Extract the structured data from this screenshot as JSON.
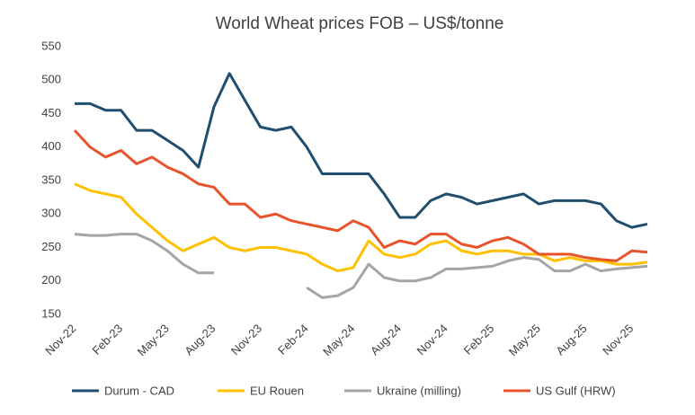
{
  "chart_data": {
    "type": "line",
    "title": "World Wheat prices FOB – US$/tonne",
    "categories": [
      "Nov-22",
      null,
      null,
      "Feb-23",
      null,
      null,
      "May-23",
      null,
      null,
      "Aug-23",
      null,
      null,
      "Nov-23",
      null,
      null,
      "Feb-24",
      null,
      null,
      "May-24",
      null,
      null,
      "Aug-24",
      null,
      null,
      "Nov-24",
      null,
      null,
      "Feb-25",
      null,
      null,
      "May-25",
      null,
      null,
      "Aug-25",
      null,
      null,
      "Nov-25",
      null
    ],
    "series": [
      {
        "name": "Durum - CAD",
        "color": "#1f4e6e",
        "values": [
          465,
          465,
          455,
          455,
          425,
          425,
          410,
          395,
          370,
          460,
          510,
          470,
          430,
          425,
          430,
          400,
          360,
          360,
          360,
          360,
          330,
          295,
          295,
          320,
          330,
          325,
          315,
          320,
          325,
          330,
          315,
          320,
          320,
          320,
          315,
          290,
          280,
          285
        ]
      },
      {
        "name": "EU Rouen",
        "color": "#ffc000",
        "values": [
          345,
          335,
          330,
          325,
          300,
          280,
          260,
          245,
          255,
          265,
          250,
          245,
          250,
          250,
          245,
          240,
          225,
          215,
          220,
          260,
          240,
          235,
          240,
          255,
          260,
          245,
          240,
          245,
          245,
          240,
          240,
          230,
          235,
          230,
          230,
          225,
          225,
          228
        ]
      },
      {
        "name": "Ukraine (milling)",
        "color": "#a5a5a5",
        "values": [
          270,
          268,
          268,
          270,
          270,
          260,
          245,
          225,
          212,
          212,
          null,
          null,
          null,
          null,
          null,
          190,
          175,
          178,
          190,
          225,
          205,
          200,
          200,
          205,
          218,
          218,
          220,
          222,
          230,
          235,
          232,
          215,
          215,
          225,
          215,
          218,
          220,
          222
        ]
      },
      {
        "name": "US Gulf (HRW)",
        "color": "#e8532c",
        "values": [
          425,
          400,
          385,
          395,
          375,
          385,
          370,
          360,
          345,
          340,
          315,
          315,
          295,
          300,
          290,
          285,
          280,
          275,
          290,
          280,
          250,
          260,
          255,
          270,
          270,
          255,
          250,
          260,
          265,
          255,
          240,
          240,
          240,
          235,
          232,
          230,
          245,
          243
        ]
      }
    ],
    "ylim": [
      150,
      550
    ],
    "yticks": [
      150,
      200,
      250,
      300,
      350,
      400,
      450,
      500,
      550
    ],
    "grid": false,
    "legend": "bottom"
  }
}
